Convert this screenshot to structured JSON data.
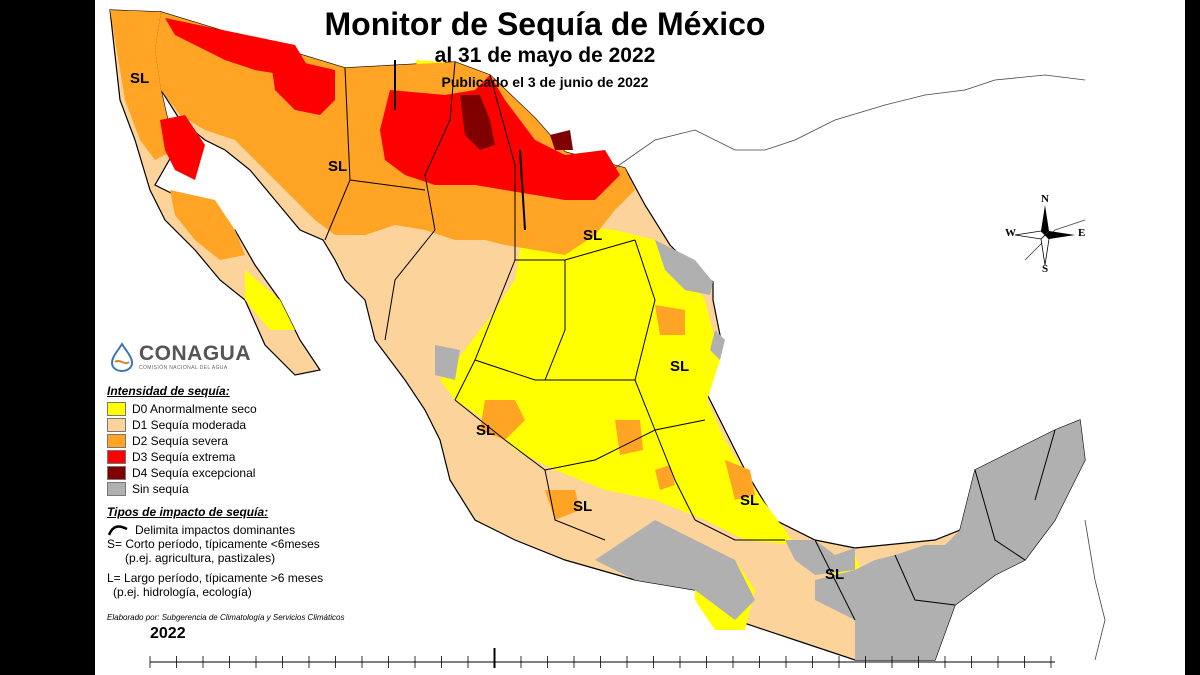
{
  "header": {
    "title": "Monitor de Sequía de México",
    "subtitle": "al 31 de mayo de 2022",
    "published": "Publicado el 3 de junio de 2022"
  },
  "logo": {
    "name": "CONAGUA",
    "tagline": "COMISIÓN NACIONAL DEL AGUA"
  },
  "legend": {
    "heading": "Intensidad de sequía:",
    "items": [
      {
        "label": "D0 Anormalmente seco",
        "color": "#ffff00"
      },
      {
        "label": "D1 Sequía moderada",
        "color": "#fcd39a"
      },
      {
        "label": "D2 Sequía severa",
        "color": "#ffa424"
      },
      {
        "label": "D3 Sequía extrema",
        "color": "#ff0000"
      },
      {
        "label": "D4 Sequía excepcional",
        "color": "#800000"
      },
      {
        "label": "Sin sequía",
        "color": "#b0b0b0"
      }
    ]
  },
  "impact": {
    "heading": "Tipos de impacto de sequía:",
    "boundary_label": "Delimita impactos dominantes",
    "short_line1": "S= Corto período, típicamente <6meses",
    "short_line2": "(p.ej. agricultura, pastizales)",
    "long_line1": "L= Largo período, típicamente >6 meses",
    "long_line2": "(p.ej. hidrología, ecología)"
  },
  "credit": "Elaborado por: Subgerencia de Climatología y Servicios Climáticos",
  "year": "2022",
  "compass": {
    "n": "N",
    "s": "S",
    "e": "E",
    "w": "W"
  },
  "impact_labels": [
    "SL",
    "SL",
    "SL",
    "SL",
    "SL",
    "SL",
    "SL",
    "SL"
  ]
}
